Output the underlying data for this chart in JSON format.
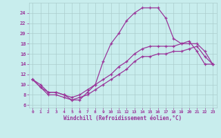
{
  "background_color": "#c8eded",
  "grid_color": "#aacccc",
  "line_color": "#993399",
  "xlim": [
    -0.5,
    23.5
  ],
  "ylim": [
    5.5,
    26.0
  ],
  "xlabel": "Windchill (Refroidissement éolien,°C)",
  "xtick_positions": [
    0,
    1,
    2,
    3,
    4,
    5,
    6,
    7,
    8,
    9,
    10,
    11,
    12,
    13,
    14,
    15,
    16,
    17,
    18,
    19,
    20,
    21,
    22,
    23
  ],
  "ytick_positions": [
    6,
    8,
    10,
    12,
    14,
    16,
    18,
    20,
    22,
    24
  ],
  "curve1_x": [
    0,
    1,
    2,
    3,
    4,
    5,
    6,
    7,
    8,
    9,
    10,
    11,
    12,
    13,
    14,
    15,
    16,
    17,
    18,
    19,
    20,
    21,
    22,
    23
  ],
  "curve1_y": [
    11.0,
    10.0,
    8.5,
    8.5,
    8.0,
    7.0,
    7.0,
    8.5,
    10.0,
    14.5,
    18.0,
    20.0,
    22.5,
    24.0,
    25.0,
    25.0,
    25.0,
    23.0,
    19.0,
    18.0,
    18.5,
    16.5,
    14.0,
    14.0
  ],
  "curve2_x": [
    0,
    1,
    2,
    3,
    4,
    5,
    6,
    7,
    8,
    9,
    10,
    11,
    12,
    13,
    14,
    15,
    16,
    17,
    18,
    19,
    20,
    21,
    22,
    23
  ],
  "curve2_y": [
    11.0,
    9.5,
    8.5,
    8.5,
    8.0,
    7.5,
    8.0,
    9.0,
    10.0,
    11.0,
    12.0,
    13.5,
    14.5,
    16.0,
    17.0,
    17.5,
    17.5,
    17.5,
    17.5,
    18.0,
    18.0,
    18.0,
    16.5,
    14.0
  ],
  "curve3_x": [
    0,
    1,
    2,
    3,
    4,
    5,
    6,
    7,
    8,
    9,
    10,
    11,
    12,
    13,
    14,
    15,
    16,
    17,
    18,
    19,
    20,
    21,
    22,
    23
  ],
  "curve3_y": [
    11.0,
    9.5,
    8.0,
    8.0,
    7.5,
    7.0,
    7.5,
    8.0,
    9.0,
    10.0,
    11.0,
    12.0,
    13.0,
    14.5,
    15.5,
    15.5,
    16.0,
    16.0,
    16.5,
    16.5,
    17.0,
    17.5,
    15.5,
    14.0
  ]
}
